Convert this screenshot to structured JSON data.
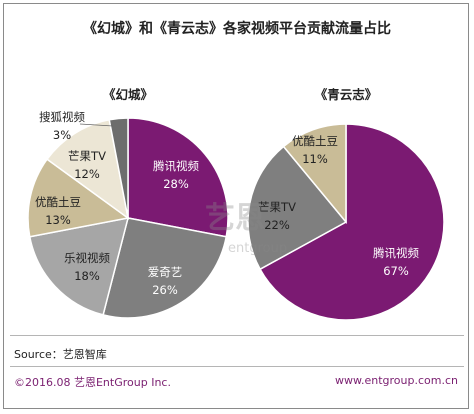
{
  "title": "《幻城》和《青云志》各家视频平台贡献流量占比",
  "source": "Source：艺恩智库",
  "footer": {
    "copyright": "©2016.08 艺恩EntGroup Inc.",
    "url": "www.entgroup.com.cn"
  },
  "watermark": {
    "brand": "艺恩",
    "sub": "entgroup"
  },
  "chart_data": [
    {
      "type": "pie",
      "title": "《幻城》",
      "unit": "%",
      "slices": [
        {
          "name": "腾讯视频",
          "value": 28,
          "label": "28%",
          "color": "#7b1a72",
          "text_color": "#ffffff"
        },
        {
          "name": "爱奇艺",
          "value": 26,
          "label": "26%",
          "color": "#7f7f7f",
          "text_color": "#ffffff"
        },
        {
          "name": "乐视视频",
          "value": 18,
          "label": "18%",
          "color": "#a6a6a6",
          "text_color": "#222222"
        },
        {
          "name": "优酷土豆",
          "value": 13,
          "label": "13%",
          "color": "#c9bc97",
          "text_color": "#222222"
        },
        {
          "name": "芒果TV",
          "value": 12,
          "label": "12%",
          "color": "#ece6d5",
          "text_color": "#222222"
        },
        {
          "name": "搜狐视频",
          "value": 3,
          "label": "3%",
          "color": "#6d6d6d",
          "text_color": "#222222"
        }
      ]
    },
    {
      "type": "pie",
      "title": "《青云志》",
      "unit": "%",
      "slices": [
        {
          "name": "腾讯视频",
          "value": 67,
          "label": "67%",
          "color": "#7b1a72",
          "text_color": "#ffffff"
        },
        {
          "name": "芒果TV",
          "value": 22,
          "label": "22%",
          "color": "#7f7f7f",
          "text_color": "#222222"
        },
        {
          "name": "优酷土豆",
          "value": 11,
          "label": "11%",
          "color": "#c9bc97",
          "text_color": "#222222"
        }
      ]
    }
  ]
}
